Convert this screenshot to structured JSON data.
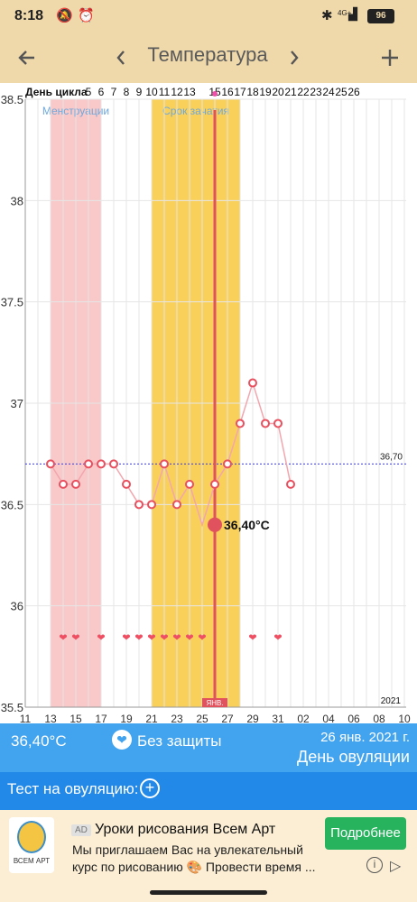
{
  "status": {
    "time": "8:18",
    "network": "4G+",
    "battery": "96"
  },
  "toolbar": {
    "back_icon": "arrow-left-icon",
    "prev_icon": "chevron-left-icon",
    "title": "Температура",
    "next_icon": "chevron-right-icon",
    "add_icon": "plus-icon"
  },
  "chart_data": {
    "type": "line",
    "cycle_header_label": "День цикла",
    "cycle_days": [
      "",
      "5",
      "6",
      "7",
      "8",
      "9",
      "10",
      "11",
      "12",
      "13",
      "",
      "15",
      "16",
      "17",
      "18",
      "19",
      "20",
      "21",
      "22",
      "23",
      "24",
      "25",
      "26"
    ],
    "x_tick_labels": [
      "11",
      "13",
      "15",
      "17",
      "19",
      "21",
      "23",
      "25",
      "27",
      "29",
      "31",
      "02",
      "04",
      "06",
      "08",
      "10"
    ],
    "y_tick_labels": [
      "38.5",
      "38",
      "37.5",
      "37",
      "36.5",
      "36",
      "35.5"
    ],
    "ylim": [
      35.5,
      38.5
    ],
    "year_label": "2021",
    "month_marker": "ЯНВ.",
    "coverline": {
      "value": 36.7,
      "label": "36,70"
    },
    "bands": [
      {
        "label": "Менструации",
        "color": "#f9c8c8",
        "from_day": 13,
        "to_day": 17
      },
      {
        "label": "Срок зачатия",
        "color": "#f8d05a",
        "from_day": 21,
        "to_day": 28
      }
    ],
    "selected": {
      "day": 26,
      "value": 36.4,
      "label": "36,40°C"
    },
    "points": [
      {
        "day": 13,
        "value": 36.7
      },
      {
        "day": 14,
        "value": 36.6
      },
      {
        "day": 15,
        "value": 36.6
      },
      {
        "day": 16,
        "value": 36.7
      },
      {
        "day": 17,
        "value": 36.7
      },
      {
        "day": 18,
        "value": 36.7
      },
      {
        "day": 19,
        "value": 36.6
      },
      {
        "day": 20,
        "value": 36.5
      },
      {
        "day": 21,
        "value": 36.5
      },
      {
        "day": 22,
        "value": 36.7
      },
      {
        "day": 23,
        "value": 36.5
      },
      {
        "day": 24,
        "value": 36.6
      },
      {
        "day": 25,
        "value": 36.4
      },
      {
        "day": 26,
        "value": 36.6
      },
      {
        "day": 27,
        "value": 36.7
      },
      {
        "day": 28,
        "value": 36.9
      },
      {
        "day": 29,
        "value": 37.1
      },
      {
        "day": 30,
        "value": 36.9
      },
      {
        "day": 31,
        "value": 36.9
      },
      {
        "day": 32,
        "value": 36.6
      }
    ],
    "heart_days": [
      14,
      15,
      17,
      19,
      20,
      21,
      22,
      23,
      24,
      25,
      29,
      31
    ]
  },
  "info": {
    "temperature": "36,40°C",
    "protection_icon": "heart-icon",
    "protection": "Без защиты",
    "date": "26 янв. 2021 г.",
    "day_status": "День овуляции"
  },
  "test": {
    "label": "Тест на овуляцию:",
    "add_icon": "plus-circle-icon"
  },
  "ad": {
    "logo_text": "ВСЕМ АРТ",
    "tag": "AD",
    "title": "Уроки рисования Всем Арт",
    "body": "Мы приглашаем Вас на увлекательный курс по рисованию 🎨 Провести время ...",
    "cta": "Подробнее",
    "info_icon": "info-icon",
    "play_icon": "adchoices-icon"
  }
}
